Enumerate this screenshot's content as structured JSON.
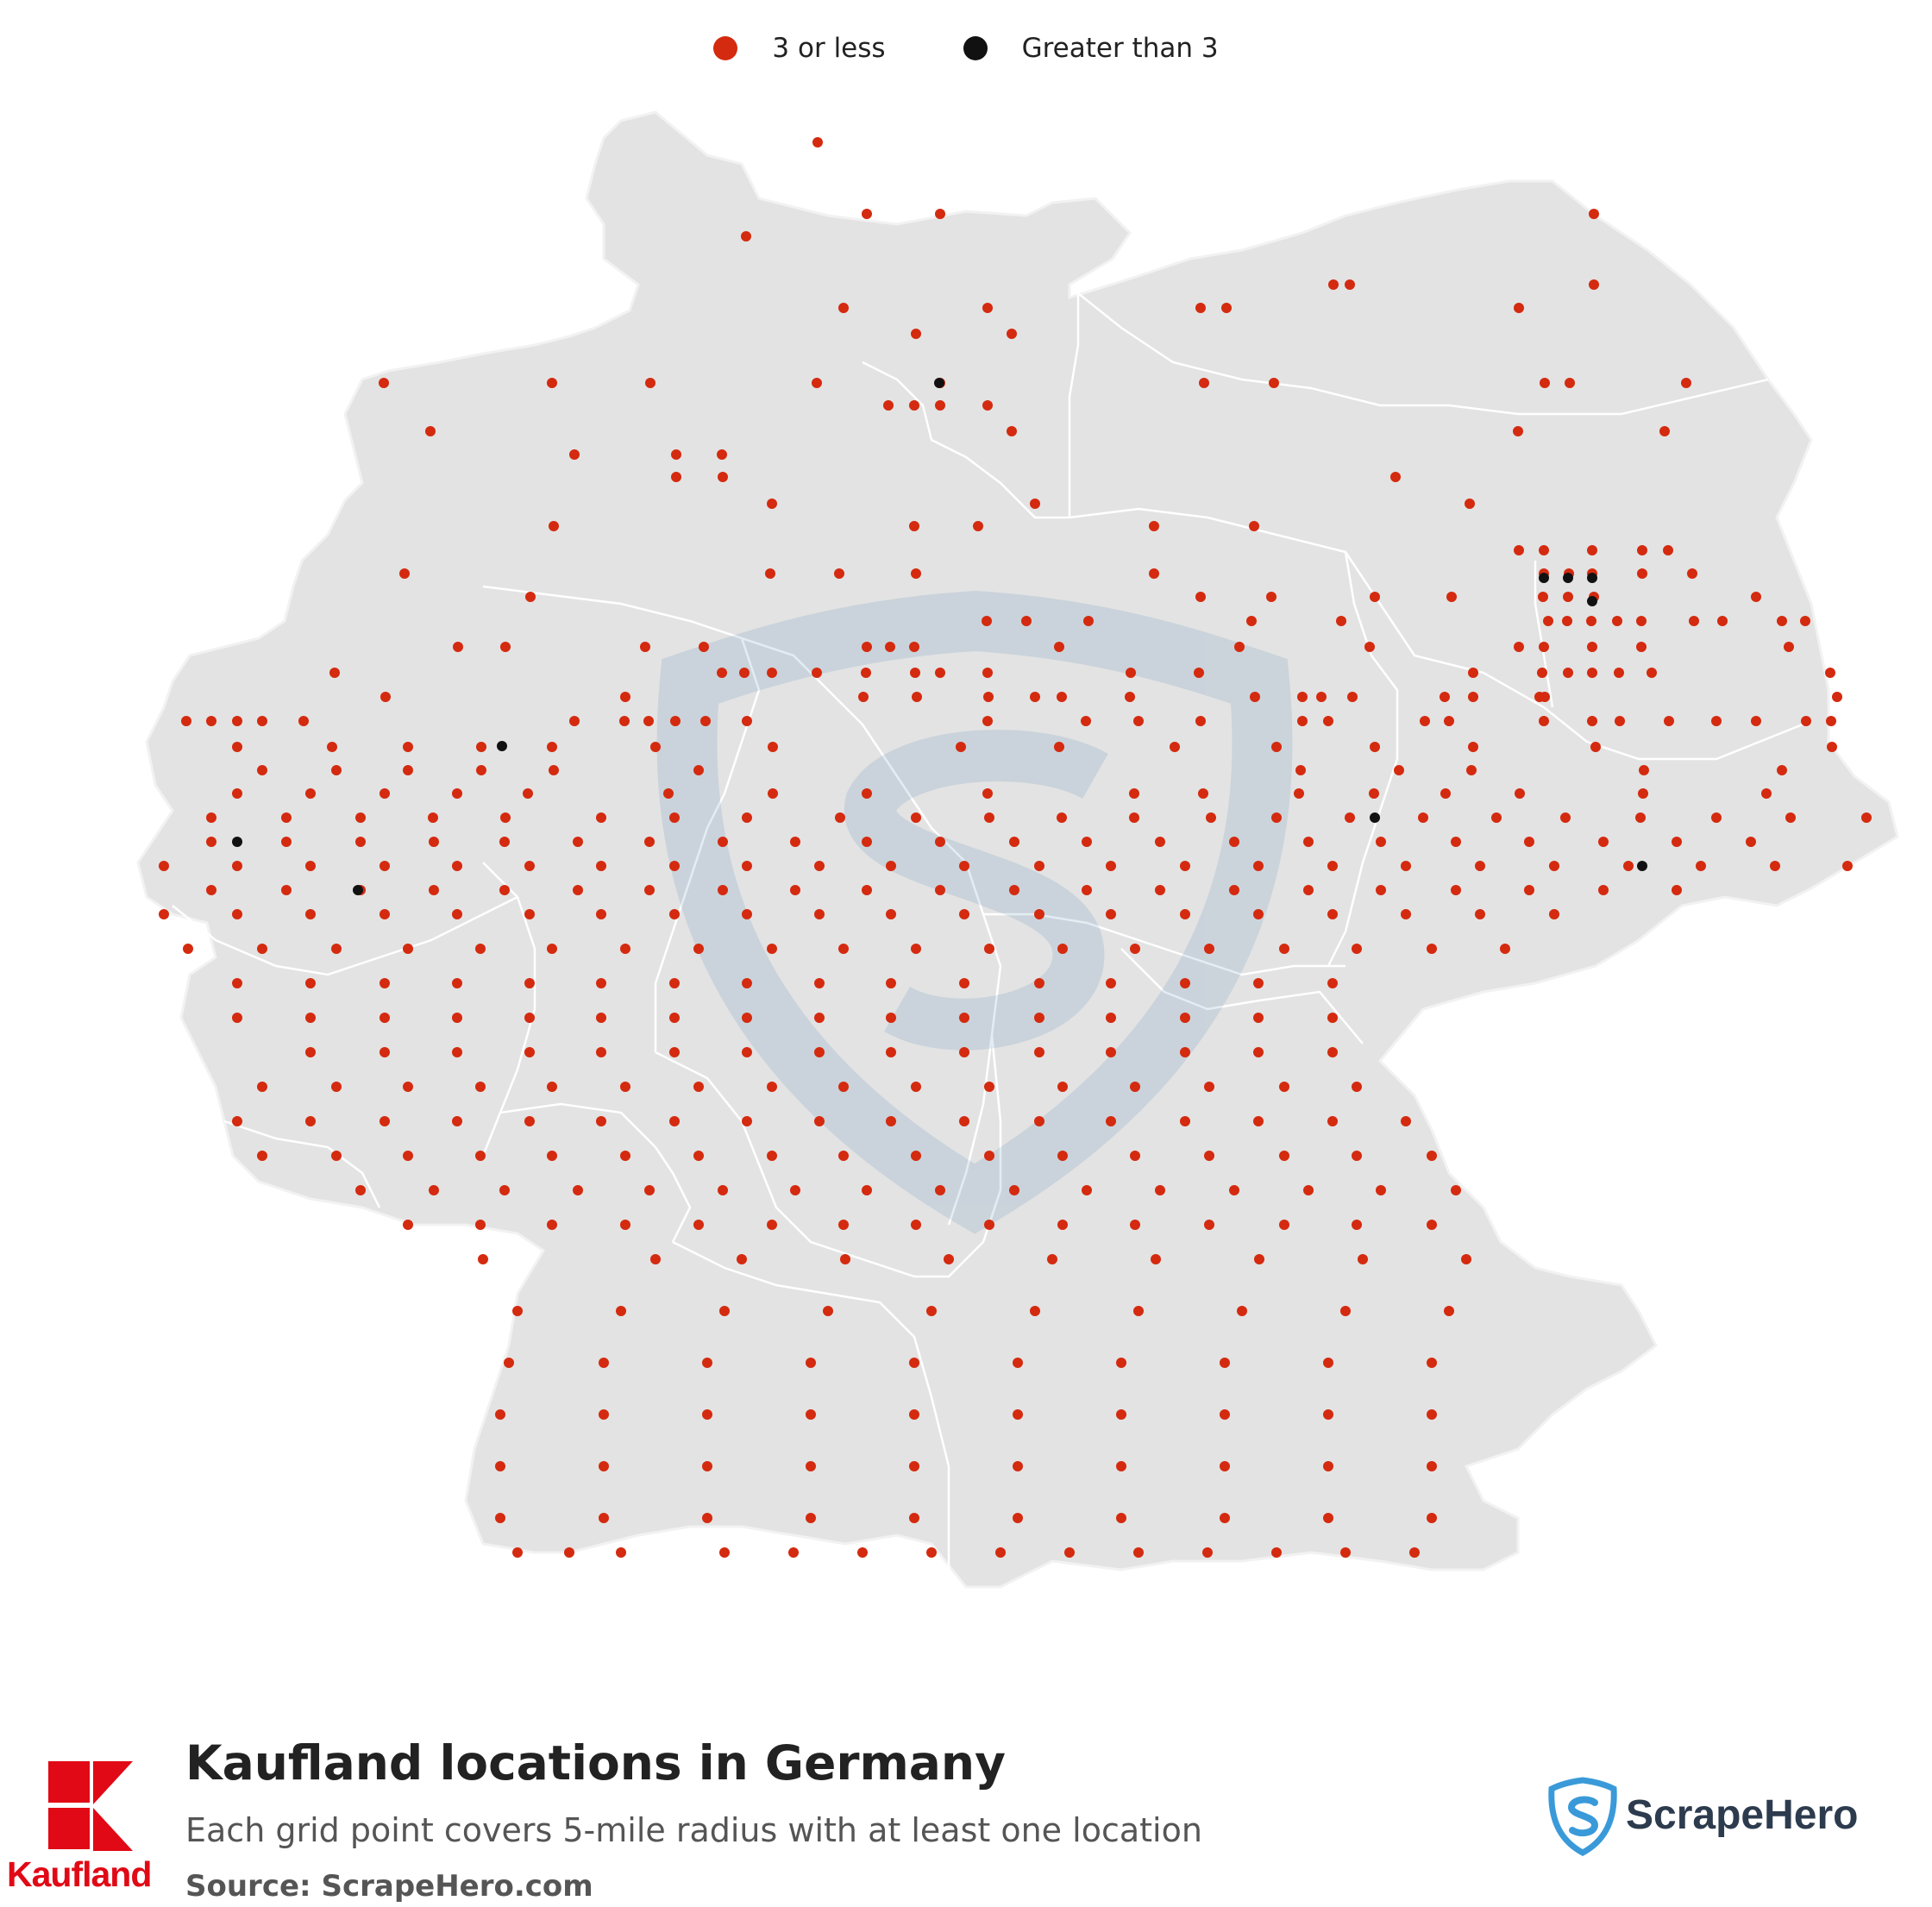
{
  "legend": {
    "items": [
      {
        "label": "3 or less",
        "color": "#d42a0f"
      },
      {
        "label": "Greater than 3",
        "color": "#111111"
      }
    ]
  },
  "footer": {
    "title": "Kaufland locations in Germany",
    "subtitle": "Each grid point covers 5-mile radius with at least one location",
    "source": "Source: ScrapeHero.com"
  },
  "brand": {
    "name": "Kaufland",
    "color": "#e10915"
  },
  "watermark": {
    "name": "ScrapeHero",
    "color": "#2d3b4e",
    "icon": "shield-s-icon"
  },
  "map": {
    "land_color": "#e3e3e3",
    "border_color": "#ffffff"
  }
}
